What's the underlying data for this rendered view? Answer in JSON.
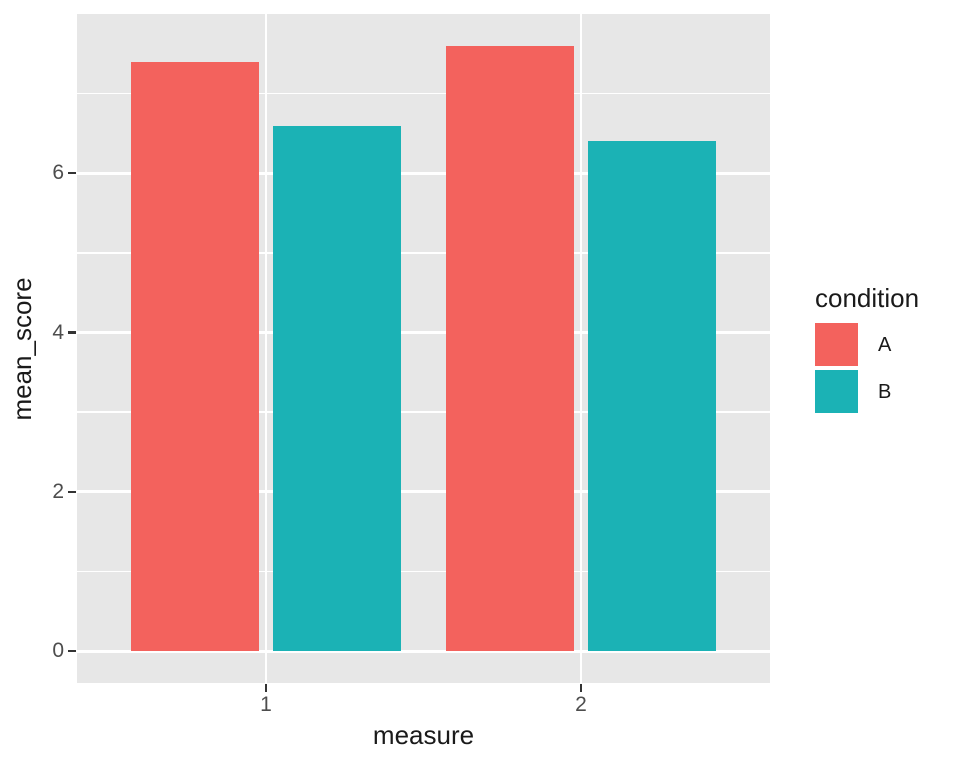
{
  "chart_data": {
    "type": "bar",
    "grouped": true,
    "orientation": "vertical",
    "title": "",
    "xlabel": "measure",
    "ylabel": "mean_score",
    "categories": [
      "1",
      "2"
    ],
    "series": [
      {
        "name": "A",
        "color": "#F3625D",
        "values": [
          7.4,
          7.6
        ]
      },
      {
        "name": "B",
        "color": "#1BB2B5",
        "values": [
          6.6,
          6.4
        ]
      }
    ],
    "ylim": [
      -0.4,
      8.0
    ],
    "yticks": [
      0,
      2,
      4,
      6
    ],
    "yminor": [
      1,
      3,
      5,
      7
    ],
    "grid": true,
    "legend_title": "condition",
    "legend_position": "right",
    "style": {
      "panel_background": "#E7E7E7",
      "gridline_color": "#FFFFFF",
      "plot_background": "#FFFFFF",
      "tick_mark_color": "#333333",
      "tick_label_color": "#4D4D4D",
      "axis_title_color": "#1A1A1A",
      "legend_text_color": "#1A1A1A"
    }
  }
}
